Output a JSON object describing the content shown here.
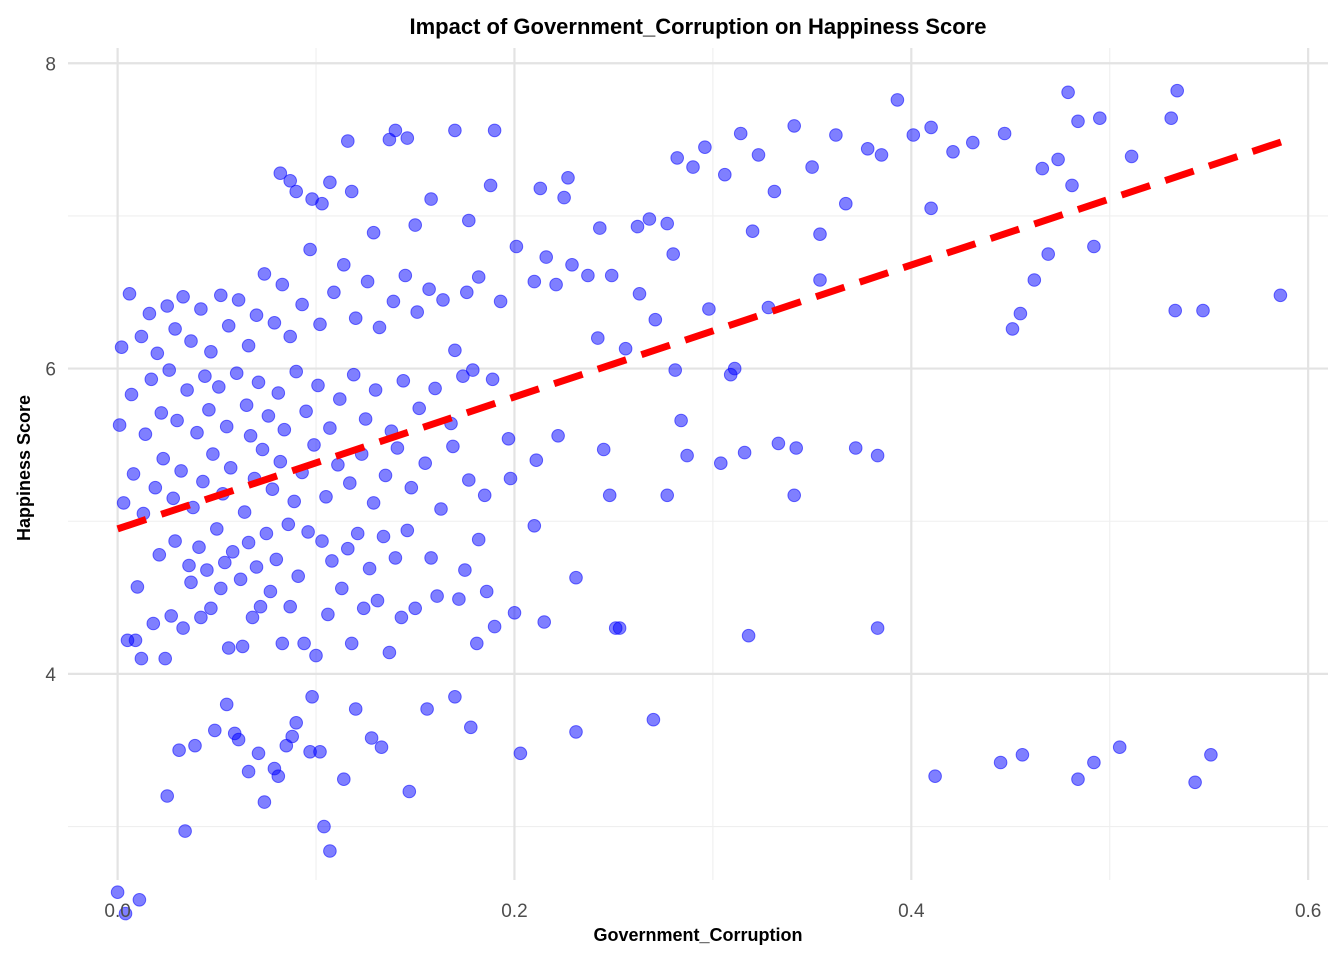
{
  "chart_data": {
    "type": "scatter",
    "title": "Impact of Government_Corruption on Happiness Score",
    "xlabel": "Government_Corruption",
    "ylabel": "Happiness Score",
    "xlim": [
      -0.025,
      0.61
    ],
    "ylim": [
      2.65,
      8.1
    ],
    "x_ticks": [
      "0.0",
      "0.2",
      "0.4",
      "0.6"
    ],
    "y_ticks": [
      "4",
      "6",
      "8"
    ],
    "grid": true,
    "point_color": "#0000ff",
    "trend_line": {
      "color": "#ff0000",
      "style": "dashed",
      "x": [
        0.0,
        0.59
      ],
      "y": [
        4.95,
        7.5
      ]
    },
    "points": [
      [
        0.0,
        2.57
      ],
      [
        0.004,
        2.43
      ],
      [
        0.011,
        2.52
      ],
      [
        0.034,
        2.97
      ],
      [
        0.104,
        3.0
      ],
      [
        0.107,
        2.84
      ],
      [
        0.025,
        3.2
      ],
      [
        0.031,
        3.5
      ],
      [
        0.039,
        3.53
      ],
      [
        0.049,
        3.63
      ],
      [
        0.055,
        3.8
      ],
      [
        0.059,
        3.61
      ],
      [
        0.061,
        3.57
      ],
      [
        0.066,
        3.36
      ],
      [
        0.071,
        3.48
      ],
      [
        0.074,
        3.16
      ],
      [
        0.079,
        3.38
      ],
      [
        0.081,
        3.33
      ],
      [
        0.085,
        3.53
      ],
      [
        0.088,
        3.59
      ],
      [
        0.09,
        3.68
      ],
      [
        0.097,
        3.49
      ],
      [
        0.098,
        3.85
      ],
      [
        0.102,
        3.49
      ],
      [
        0.114,
        3.31
      ],
      [
        0.12,
        3.77
      ],
      [
        0.128,
        3.58
      ],
      [
        0.133,
        3.52
      ],
      [
        0.147,
        3.23
      ],
      [
        0.156,
        3.77
      ],
      [
        0.17,
        3.85
      ],
      [
        0.178,
        3.65
      ],
      [
        0.203,
        3.48
      ],
      [
        0.231,
        3.62
      ],
      [
        0.27,
        3.7
      ],
      [
        0.251,
        4.3
      ],
      [
        0.253,
        4.3
      ],
      [
        0.318,
        4.25
      ],
      [
        0.383,
        4.3
      ],
      [
        0.412,
        3.33
      ],
      [
        0.445,
        3.42
      ],
      [
        0.456,
        3.47
      ],
      [
        0.484,
        3.31
      ],
      [
        0.492,
        3.42
      ],
      [
        0.505,
        3.52
      ],
      [
        0.543,
        3.29
      ],
      [
        0.551,
        3.47
      ],
      [
        0.005,
        4.22
      ],
      [
        0.009,
        4.22
      ],
      [
        0.012,
        4.1
      ],
      [
        0.018,
        4.33
      ],
      [
        0.024,
        4.1
      ],
      [
        0.027,
        4.38
      ],
      [
        0.033,
        4.3
      ],
      [
        0.037,
        4.6
      ],
      [
        0.042,
        4.37
      ],
      [
        0.047,
        4.43
      ],
      [
        0.052,
        4.56
      ],
      [
        0.056,
        4.17
      ],
      [
        0.063,
        4.18
      ],
      [
        0.068,
        4.37
      ],
      [
        0.072,
        4.44
      ],
      [
        0.077,
        4.54
      ],
      [
        0.083,
        4.2
      ],
      [
        0.087,
        4.44
      ],
      [
        0.094,
        4.2
      ],
      [
        0.1,
        4.12
      ],
      [
        0.106,
        4.39
      ],
      [
        0.113,
        4.56
      ],
      [
        0.118,
        4.2
      ],
      [
        0.124,
        4.43
      ],
      [
        0.131,
        4.48
      ],
      [
        0.137,
        4.14
      ],
      [
        0.143,
        4.37
      ],
      [
        0.15,
        4.43
      ],
      [
        0.161,
        4.51
      ],
      [
        0.172,
        4.49
      ],
      [
        0.181,
        4.2
      ],
      [
        0.186,
        4.54
      ],
      [
        0.19,
        4.31
      ],
      [
        0.2,
        4.4
      ],
      [
        0.215,
        4.34
      ],
      [
        0.231,
        4.63
      ],
      [
        0.01,
        4.57
      ],
      [
        0.021,
        4.78
      ],
      [
        0.029,
        4.87
      ],
      [
        0.036,
        4.71
      ],
      [
        0.041,
        4.83
      ],
      [
        0.045,
        4.68
      ],
      [
        0.05,
        4.95
      ],
      [
        0.054,
        4.73
      ],
      [
        0.058,
        4.8
      ],
      [
        0.062,
        4.62
      ],
      [
        0.066,
        4.86
      ],
      [
        0.07,
        4.7
      ],
      [
        0.075,
        4.92
      ],
      [
        0.08,
        4.75
      ],
      [
        0.086,
        4.98
      ],
      [
        0.091,
        4.64
      ],
      [
        0.096,
        4.93
      ],
      [
        0.103,
        4.87
      ],
      [
        0.108,
        4.74
      ],
      [
        0.116,
        4.82
      ],
      [
        0.121,
        4.92
      ],
      [
        0.127,
        4.69
      ],
      [
        0.134,
        4.9
      ],
      [
        0.14,
        4.76
      ],
      [
        0.146,
        4.94
      ],
      [
        0.158,
        4.76
      ],
      [
        0.175,
        4.68
      ],
      [
        0.182,
        4.88
      ],
      [
        0.21,
        4.97
      ],
      [
        0.003,
        5.12
      ],
      [
        0.008,
        5.31
      ],
      [
        0.013,
        5.05
      ],
      [
        0.019,
        5.22
      ],
      [
        0.023,
        5.41
      ],
      [
        0.028,
        5.15
      ],
      [
        0.032,
        5.33
      ],
      [
        0.038,
        5.09
      ],
      [
        0.043,
        5.26
      ],
      [
        0.048,
        5.44
      ],
      [
        0.053,
        5.18
      ],
      [
        0.057,
        5.35
      ],
      [
        0.064,
        5.06
      ],
      [
        0.069,
        5.28
      ],
      [
        0.073,
        5.47
      ],
      [
        0.078,
        5.21
      ],
      [
        0.082,
        5.39
      ],
      [
        0.089,
        5.13
      ],
      [
        0.093,
        5.32
      ],
      [
        0.099,
        5.5
      ],
      [
        0.105,
        5.16
      ],
      [
        0.111,
        5.37
      ],
      [
        0.117,
        5.25
      ],
      [
        0.123,
        5.44
      ],
      [
        0.129,
        5.12
      ],
      [
        0.135,
        5.3
      ],
      [
        0.141,
        5.48
      ],
      [
        0.148,
        5.22
      ],
      [
        0.155,
        5.38
      ],
      [
        0.163,
        5.08
      ],
      [
        0.169,
        5.49
      ],
      [
        0.177,
        5.27
      ],
      [
        0.185,
        5.17
      ],
      [
        0.198,
        5.28
      ],
      [
        0.211,
        5.4
      ],
      [
        0.248,
        5.17
      ],
      [
        0.277,
        5.17
      ],
      [
        0.341,
        5.17
      ],
      [
        0.287,
        5.43
      ],
      [
        0.304,
        5.38
      ],
      [
        0.316,
        5.45
      ],
      [
        0.333,
        5.51
      ],
      [
        0.342,
        5.48
      ],
      [
        0.372,
        5.48
      ],
      [
        0.383,
        5.43
      ],
      [
        0.001,
        5.63
      ],
      [
        0.007,
        5.83
      ],
      [
        0.014,
        5.57
      ],
      [
        0.017,
        5.93
      ],
      [
        0.022,
        5.71
      ],
      [
        0.026,
        5.99
      ],
      [
        0.03,
        5.66
      ],
      [
        0.035,
        5.86
      ],
      [
        0.04,
        5.58
      ],
      [
        0.044,
        5.95
      ],
      [
        0.046,
        5.73
      ],
      [
        0.051,
        5.88
      ],
      [
        0.055,
        5.62
      ],
      [
        0.06,
        5.97
      ],
      [
        0.065,
        5.76
      ],
      [
        0.067,
        5.56
      ],
      [
        0.071,
        5.91
      ],
      [
        0.076,
        5.69
      ],
      [
        0.081,
        5.84
      ],
      [
        0.084,
        5.6
      ],
      [
        0.09,
        5.98
      ],
      [
        0.095,
        5.72
      ],
      [
        0.101,
        5.89
      ],
      [
        0.107,
        5.61
      ],
      [
        0.112,
        5.8
      ],
      [
        0.119,
        5.96
      ],
      [
        0.125,
        5.67
      ],
      [
        0.13,
        5.86
      ],
      [
        0.138,
        5.59
      ],
      [
        0.144,
        5.92
      ],
      [
        0.152,
        5.74
      ],
      [
        0.16,
        5.87
      ],
      [
        0.168,
        5.64
      ],
      [
        0.174,
        5.95
      ],
      [
        0.179,
        5.99
      ],
      [
        0.189,
        5.93
      ],
      [
        0.197,
        5.54
      ],
      [
        0.222,
        5.56
      ],
      [
        0.245,
        5.47
      ],
      [
        0.281,
        5.99
      ],
      [
        0.284,
        5.66
      ],
      [
        0.309,
        5.96
      ],
      [
        0.311,
        6.0
      ],
      [
        0.002,
        6.14
      ],
      [
        0.006,
        6.49
      ],
      [
        0.012,
        6.21
      ],
      [
        0.016,
        6.36
      ],
      [
        0.02,
        6.1
      ],
      [
        0.025,
        6.41
      ],
      [
        0.029,
        6.26
      ],
      [
        0.033,
        6.47
      ],
      [
        0.037,
        6.18
      ],
      [
        0.042,
        6.39
      ],
      [
        0.047,
        6.11
      ],
      [
        0.052,
        6.48
      ],
      [
        0.056,
        6.28
      ],
      [
        0.061,
        6.45
      ],
      [
        0.066,
        6.15
      ],
      [
        0.07,
        6.35
      ],
      [
        0.074,
        6.62
      ],
      [
        0.079,
        6.3
      ],
      [
        0.083,
        6.55
      ],
      [
        0.087,
        6.21
      ],
      [
        0.093,
        6.42
      ],
      [
        0.097,
        6.78
      ],
      [
        0.102,
        6.29
      ],
      [
        0.109,
        6.5
      ],
      [
        0.114,
        6.68
      ],
      [
        0.12,
        6.33
      ],
      [
        0.126,
        6.57
      ],
      [
        0.132,
        6.27
      ],
      [
        0.139,
        6.44
      ],
      [
        0.145,
        6.61
      ],
      [
        0.151,
        6.37
      ],
      [
        0.157,
        6.52
      ],
      [
        0.164,
        6.45
      ],
      [
        0.17,
        6.12
      ],
      [
        0.176,
        6.5
      ],
      [
        0.182,
        6.6
      ],
      [
        0.193,
        6.44
      ],
      [
        0.201,
        6.8
      ],
      [
        0.21,
        6.57
      ],
      [
        0.216,
        6.73
      ],
      [
        0.221,
        6.55
      ],
      [
        0.229,
        6.68
      ],
      [
        0.237,
        6.61
      ],
      [
        0.242,
        6.2
      ],
      [
        0.249,
        6.61
      ],
      [
        0.256,
        6.13
      ],
      [
        0.263,
        6.49
      ],
      [
        0.271,
        6.32
      ],
      [
        0.28,
        6.75
      ],
      [
        0.298,
        6.39
      ],
      [
        0.328,
        6.4
      ],
      [
        0.354,
        6.58
      ],
      [
        0.451,
        6.26
      ],
      [
        0.455,
        6.36
      ],
      [
        0.462,
        6.58
      ],
      [
        0.469,
        6.75
      ],
      [
        0.533,
        6.38
      ],
      [
        0.547,
        6.38
      ],
      [
        0.586,
        6.48
      ],
      [
        0.082,
        7.28
      ],
      [
        0.087,
        7.23
      ],
      [
        0.09,
        7.16
      ],
      [
        0.098,
        7.11
      ],
      [
        0.103,
        7.08
      ],
      [
        0.107,
        7.22
      ],
      [
        0.116,
        7.49
      ],
      [
        0.118,
        7.16
      ],
      [
        0.129,
        6.89
      ],
      [
        0.137,
        7.5
      ],
      [
        0.14,
        7.56
      ],
      [
        0.146,
        7.51
      ],
      [
        0.15,
        6.94
      ],
      [
        0.158,
        7.11
      ],
      [
        0.17,
        7.56
      ],
      [
        0.177,
        6.97
      ],
      [
        0.188,
        7.2
      ],
      [
        0.19,
        7.56
      ],
      [
        0.213,
        7.18
      ],
      [
        0.225,
        7.12
      ],
      [
        0.227,
        7.25
      ],
      [
        0.243,
        6.92
      ],
      [
        0.262,
        6.93
      ],
      [
        0.268,
        6.98
      ],
      [
        0.277,
        6.95
      ],
      [
        0.282,
        7.38
      ],
      [
        0.29,
        7.32
      ],
      [
        0.296,
        7.45
      ],
      [
        0.306,
        7.27
      ],
      [
        0.314,
        7.54
      ],
      [
        0.323,
        7.4
      ],
      [
        0.331,
        7.16
      ],
      [
        0.341,
        7.59
      ],
      [
        0.35,
        7.32
      ],
      [
        0.362,
        7.53
      ],
      [
        0.367,
        7.08
      ],
      [
        0.378,
        7.44
      ],
      [
        0.385,
        7.4
      ],
      [
        0.393,
        7.76
      ],
      [
        0.401,
        7.53
      ],
      [
        0.41,
        7.58
      ],
      [
        0.421,
        7.42
      ],
      [
        0.431,
        7.48
      ],
      [
        0.447,
        7.54
      ],
      [
        0.466,
        7.31
      ],
      [
        0.474,
        7.37
      ],
      [
        0.479,
        7.81
      ],
      [
        0.484,
        7.62
      ],
      [
        0.495,
        7.64
      ],
      [
        0.511,
        7.39
      ],
      [
        0.531,
        7.64
      ],
      [
        0.534,
        7.82
      ],
      [
        0.41,
        7.05
      ],
      [
        0.481,
        7.2
      ],
      [
        0.492,
        6.8
      ],
      [
        0.354,
        6.88
      ],
      [
        0.32,
        6.9
      ]
    ]
  }
}
